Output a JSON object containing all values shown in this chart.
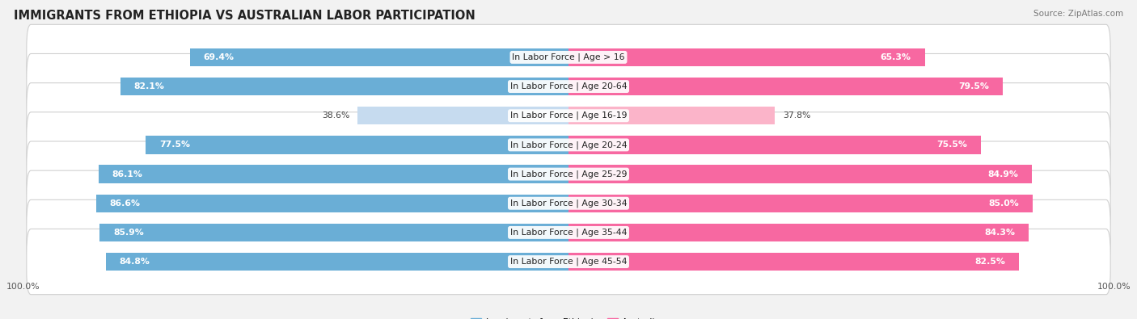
{
  "title": "IMMIGRANTS FROM ETHIOPIA VS AUSTRALIAN LABOR PARTICIPATION",
  "source": "Source: ZipAtlas.com",
  "categories": [
    "In Labor Force | Age > 16",
    "In Labor Force | Age 20-64",
    "In Labor Force | Age 16-19",
    "In Labor Force | Age 20-24",
    "In Labor Force | Age 25-29",
    "In Labor Force | Age 30-34",
    "In Labor Force | Age 35-44",
    "In Labor Force | Age 45-54"
  ],
  "ethiopia_values": [
    69.4,
    82.1,
    38.6,
    77.5,
    86.1,
    86.6,
    85.9,
    84.8
  ],
  "australia_values": [
    65.3,
    79.5,
    37.8,
    75.5,
    84.9,
    85.0,
    84.3,
    82.5
  ],
  "ethiopia_color_full": "#6aaed6",
  "ethiopia_color_light": "#c6dbef",
  "australia_color_full": "#f768a1",
  "australia_color_light": "#fbb4c9",
  "background_color": "#f2f2f2",
  "row_bg_color": "#ffffff",
  "row_border_color": "#d0d0d0",
  "bar_height": 0.62,
  "max_value": 100.0,
  "legend_ethiopia": "Immigrants from Ethiopia",
  "legend_australia": "Australian",
  "title_fontsize": 10.5,
  "label_fontsize": 7.8,
  "value_fontsize": 7.8,
  "source_fontsize": 7.5,
  "low_thresh": 50
}
